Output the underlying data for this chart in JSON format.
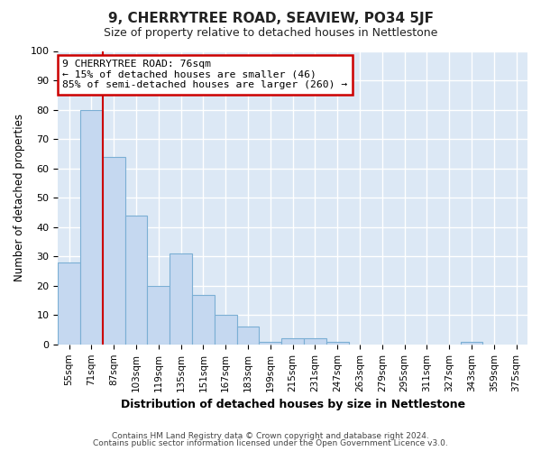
{
  "title1": "9, CHERRYTREE ROAD, SEAVIEW, PO34 5JF",
  "title2": "Size of property relative to detached houses in Nettlestone",
  "xlabel": "Distribution of detached houses by size in Nettlestone",
  "ylabel": "Number of detached properties",
  "categories": [
    "55sqm",
    "71sqm",
    "87sqm",
    "103sqm",
    "119sqm",
    "135sqm",
    "151sqm",
    "167sqm",
    "183sqm",
    "199sqm",
    "215sqm",
    "231sqm",
    "247sqm",
    "263sqm",
    "279sqm",
    "295sqm",
    "311sqm",
    "327sqm",
    "343sqm",
    "359sqm",
    "375sqm"
  ],
  "values": [
    28,
    80,
    64,
    44,
    20,
    31,
    17,
    10,
    6,
    1,
    2,
    2,
    1,
    0,
    0,
    0,
    0,
    0,
    1,
    0,
    0
  ],
  "bar_color": "#c5d8f0",
  "bar_edge_color": "#7bafd4",
  "bar_width": 1.0,
  "ylim": [
    0,
    100
  ],
  "yticks": [
    0,
    10,
    20,
    30,
    40,
    50,
    60,
    70,
    80,
    90,
    100
  ],
  "vline_x": 1.5,
  "vline_color": "#cc0000",
  "annotation_line1": "9 CHERRYTREE ROAD: 76sqm",
  "annotation_line2": "← 15% of detached houses are smaller (46)",
  "annotation_line3": "85% of semi-detached houses are larger (260) →",
  "annotation_box_color": "#ffffff",
  "annotation_border_color": "#cc0000",
  "footer1": "Contains HM Land Registry data © Crown copyright and database right 2024.",
  "footer2": "Contains public sector information licensed under the Open Government Licence v3.0.",
  "fig_bg_color": "#ffffff",
  "plot_bg_color": "#dce8f5"
}
